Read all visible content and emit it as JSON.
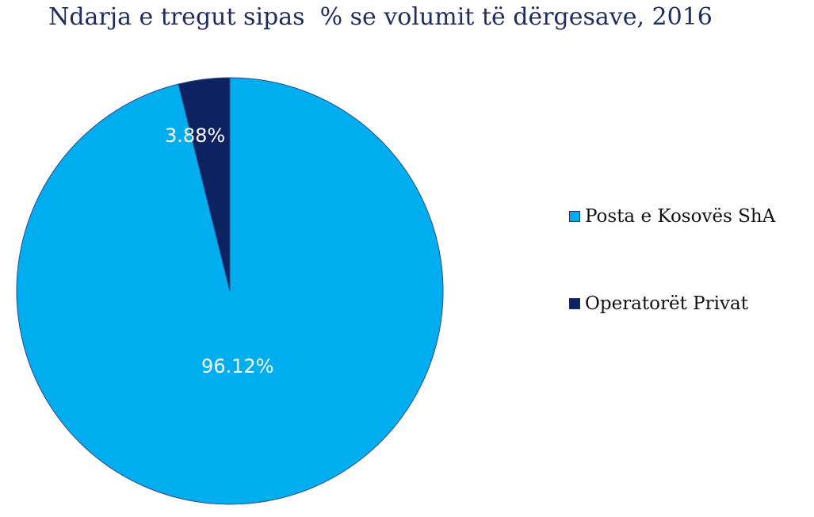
{
  "chart_data": {
    "type": "pie",
    "title": "Ndarja e tregut sipas  % se volumit të dërgesave, 2016",
    "slices": [
      {
        "name": "Posta e Kosovës ShA",
        "value": 96.12,
        "label": "96.12%",
        "color": "#00aeef"
      },
      {
        "name": "Operatorët Privat",
        "value": 3.88,
        "label": "3.88%",
        "color": "#0d2260"
      }
    ],
    "legend_position": "right"
  }
}
